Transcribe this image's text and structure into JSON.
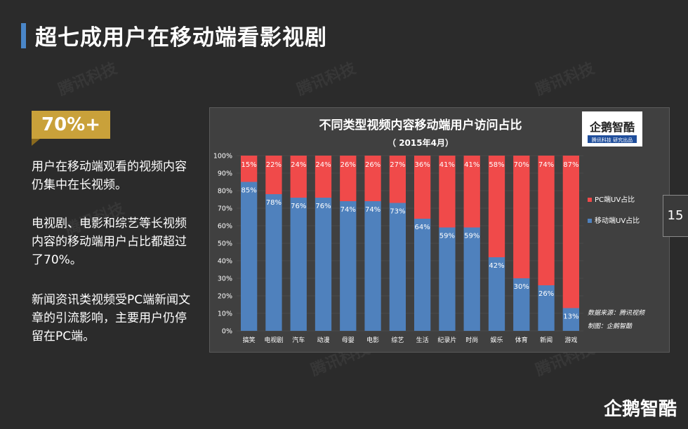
{
  "page": {
    "title": "超七成用户在移动端看影视剧",
    "badge": "70%+",
    "paragraphs": [
      "用户在移动端观看的视频内容仍集中在长视频。",
      "电视剧、电影和综艺等长视频内容的移动端用户占比都超过了70%。",
      "新闻资讯类视频受PC端新闻文章的引流影响，主要用户仍停留在PC端。"
    ],
    "watermark": "腾讯科技",
    "page_number": "15",
    "footer_logo": "企鹅智酷"
  },
  "chart_data": {
    "type": "bar",
    "stacked": true,
    "title": "不同类型视频内容移动端用户访问占比",
    "subtitle": "（ 2015年4月）",
    "categories": [
      "搞笑",
      "电视剧",
      "汽车",
      "动漫",
      "母婴",
      "电影",
      "综艺",
      "生活",
      "纪录片",
      "时尚",
      "娱乐",
      "体育",
      "新闻",
      "游戏"
    ],
    "series": [
      {
        "name": "移动端UV占比",
        "color": "#4f81bd",
        "values": [
          85,
          78,
          76,
          76,
          74,
          74,
          73,
          64,
          59,
          59,
          42,
          30,
          26,
          13
        ]
      },
      {
        "name": "PC端UV占比",
        "color": "#f04a4a",
        "values": [
          15,
          22,
          24,
          24,
          26,
          26,
          27,
          36,
          41,
          41,
          58,
          70,
          74,
          87
        ]
      }
    ],
    "ylim": [
      0,
      100
    ],
    "yticks": [
      "0%",
      "10%",
      "20%",
      "30%",
      "40%",
      "50%",
      "60%",
      "70%",
      "80%",
      "90%",
      "100%"
    ],
    "legend_position": "right",
    "source_lines": [
      "数据来源：腾讯视频",
      "制图：企鹅智酷"
    ],
    "logo": {
      "main": "企鹅智酷",
      "sub": "腾讯科技 研究出品"
    }
  }
}
